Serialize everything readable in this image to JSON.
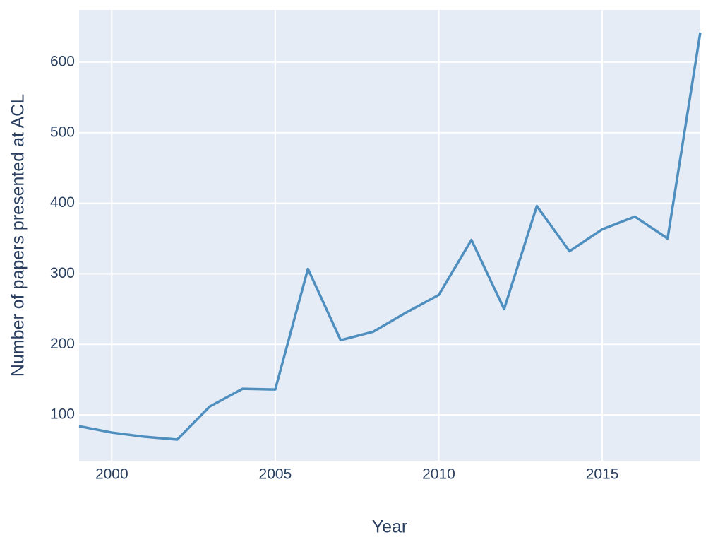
{
  "chart_data": {
    "type": "line",
    "x_label": "Year",
    "y_label": "Number of papers presented at ACL",
    "x": [
      1999,
      2000,
      2001,
      2002,
      2003,
      2004,
      2005,
      2006,
      2007,
      2008,
      2009,
      2010,
      2011,
      2012,
      2013,
      2014,
      2015,
      2016,
      2017,
      2018
    ],
    "values": [
      84,
      75,
      69,
      65,
      112,
      137,
      136,
      307,
      206,
      218,
      245,
      270,
      348,
      250,
      396,
      332,
      363,
      381,
      350,
      642
    ],
    "color": "#4f8fbf",
    "background": "#e5ecf6",
    "xlim": [
      1999,
      2018
    ],
    "ylim": [
      35,
      674
    ],
    "xticks": [
      2000,
      2005,
      2010,
      2015
    ],
    "yticks": [
      100,
      200,
      300,
      400,
      500,
      600
    ],
    "grid": true
  }
}
